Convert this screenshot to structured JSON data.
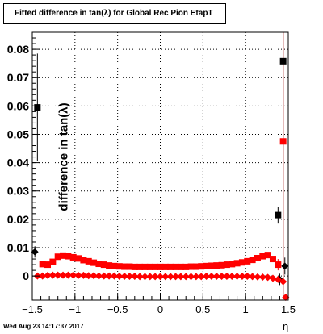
{
  "title": "Fitted difference in tan(λ) for Global Rec Pion EtapT",
  "timestamp": "Wed Aug 23 14:17:37 2017",
  "chart_data": {
    "type": "scatter",
    "xlabel": "η",
    "ylabel": "difference in tan(λ)",
    "xlim": [
      -1.5,
      1.5
    ],
    "ylim": [
      -0.0085,
      0.086
    ],
    "grid": true,
    "xticks": [
      -1.5,
      -1,
      -0.5,
      0,
      0.5,
      1,
      1.5
    ],
    "xtick_labels": [
      "−1.5",
      "−1",
      "−0.5",
      "0",
      "0.5",
      "1",
      "1.5"
    ],
    "yticks": [
      0,
      0.01,
      0.02,
      0.03,
      0.04,
      0.05,
      0.06,
      0.07,
      0.08
    ],
    "ytick_labels": [
      "0",
      "0.01",
      "0.02",
      "0.03",
      "0.04",
      "0.05",
      "0.06",
      "0.07",
      "0.08"
    ],
    "series": [
      {
        "color": "#000000",
        "marker": "square",
        "points": [
          {
            "x": -1.44,
            "y": 0.0595,
            "err": 0.019
          },
          {
            "x": 1.38,
            "y": 0.0215,
            "err": 0.003
          },
          {
            "x": 1.44,
            "y": 0.0758,
            "err": 0.086
          }
        ]
      },
      {
        "color": "#000000",
        "marker": "diamond",
        "points": [
          {
            "x": -1.47,
            "y": 0.0085,
            "err": 0.002
          },
          {
            "x": 1.4,
            "y": -0.0012,
            "err": 0.002
          },
          {
            "x": 1.46,
            "y": 0.0035,
            "err": 0.003
          }
        ]
      },
      {
        "color": "#ff0000",
        "marker": "square",
        "x": [
          -1.38,
          -1.32,
          -1.26,
          -1.2,
          -1.14,
          -1.08,
          -1.02,
          -0.96,
          -0.9,
          -0.84,
          -0.78,
          -0.72,
          -0.66,
          -0.6,
          -0.54,
          -0.48,
          -0.42,
          -0.36,
          -0.3,
          -0.24,
          -0.18,
          -0.12,
          -0.06,
          0.0,
          0.06,
          0.12,
          0.18,
          0.24,
          0.3,
          0.36,
          0.42,
          0.48,
          0.54,
          0.6,
          0.66,
          0.72,
          0.78,
          0.84,
          0.9,
          0.96,
          1.02,
          1.08,
          1.14,
          1.2,
          1.26,
          1.32,
          1.38,
          1.44
        ],
        "y": [
          0.0042,
          0.004,
          0.005,
          0.0068,
          0.0072,
          0.007,
          0.0066,
          0.0062,
          0.0056,
          0.0052,
          0.0047,
          0.0043,
          0.004,
          0.0037,
          0.0035,
          0.0034,
          0.0033,
          0.0033,
          0.0032,
          0.0032,
          0.0032,
          0.0032,
          0.0032,
          0.0032,
          0.0032,
          0.0032,
          0.0032,
          0.0032,
          0.0032,
          0.0033,
          0.0033,
          0.0034,
          0.0035,
          0.0036,
          0.0037,
          0.0038,
          0.004,
          0.0042,
          0.0045,
          0.0048,
          0.0052,
          0.0057,
          0.0063,
          0.007,
          0.0074,
          0.006,
          0.004,
          0.0475
        ],
        "err": [
          0.001,
          0.001,
          0.001,
          0.001,
          0.0005,
          0.0005,
          0.0005,
          0.0005,
          0.0004,
          0.0004,
          0.0004,
          0.0004,
          0.0004,
          0.0004,
          0.0004,
          0.0004,
          0.0004,
          0.0004,
          0.0004,
          0.0004,
          0.0004,
          0.0004,
          0.0004,
          0.0004,
          0.0004,
          0.0004,
          0.0004,
          0.0004,
          0.0004,
          0.0004,
          0.0004,
          0.0004,
          0.0004,
          0.0004,
          0.0004,
          0.0004,
          0.0004,
          0.0004,
          0.0005,
          0.0005,
          0.0005,
          0.0005,
          0.0006,
          0.0007,
          0.0009,
          0.001,
          0.002,
          0.056
        ]
      },
      {
        "color": "#ff0000",
        "marker": "diamond",
        "x": [
          -1.44,
          -1.38,
          -1.32,
          -1.26,
          -1.2,
          -1.14,
          -1.08,
          -1.02,
          -0.96,
          -0.9,
          -0.84,
          -0.78,
          -0.72,
          -0.66,
          -0.6,
          -0.54,
          -0.48,
          -0.42,
          -0.36,
          -0.3,
          -0.24,
          -0.18,
          -0.12,
          -0.06,
          0.0,
          0.06,
          0.12,
          0.18,
          0.24,
          0.3,
          0.36,
          0.42,
          0.48,
          0.54,
          0.6,
          0.66,
          0.72,
          0.78,
          0.84,
          0.9,
          0.96,
          1.02,
          1.08,
          1.14,
          1.2,
          1.26,
          1.32,
          1.38,
          1.44,
          1.47
        ],
        "y": [
          0.0,
          0.0,
          0.0002,
          0.0003,
          0.0003,
          0.0003,
          0.0003,
          0.0003,
          0.0002,
          0.0002,
          0.0001,
          0.0001,
          0.0,
          0.0,
          0.0,
          0.0,
          -0.0001,
          -0.0001,
          -0.0001,
          -0.0001,
          -0.0002,
          -0.0002,
          -0.0002,
          -0.0002,
          -0.0002,
          -0.0002,
          -0.0002,
          -0.0002,
          -0.0002,
          -0.0002,
          -0.0002,
          -0.0002,
          -0.0002,
          -0.0001,
          -0.0001,
          -0.0001,
          -0.0001,
          -0.0001,
          -0.0001,
          -0.0001,
          -0.0001,
          -0.0001,
          -0.0002,
          -0.0003,
          -0.0004,
          -0.0005,
          -0.0008,
          -0.0012,
          -0.002,
          -0.0075
        ],
        "err": [
          0.001,
          0.0004,
          0.0004,
          0.0004,
          0.0004,
          0.0004,
          0.0004,
          0.0004,
          0.0004,
          0.0004,
          0.0004,
          0.0004,
          0.0004,
          0.0004,
          0.0004,
          0.0004,
          0.0004,
          0.0004,
          0.0004,
          0.0004,
          0.0004,
          0.0004,
          0.0004,
          0.0004,
          0.0004,
          0.0004,
          0.0004,
          0.0004,
          0.0004,
          0.0004,
          0.0004,
          0.0004,
          0.0004,
          0.0004,
          0.0004,
          0.0004,
          0.0004,
          0.0004,
          0.0004,
          0.0004,
          0.0004,
          0.0004,
          0.0004,
          0.0004,
          0.0004,
          0.0005,
          0.0006,
          0.0008,
          0.001,
          0.001
        ]
      }
    ]
  }
}
